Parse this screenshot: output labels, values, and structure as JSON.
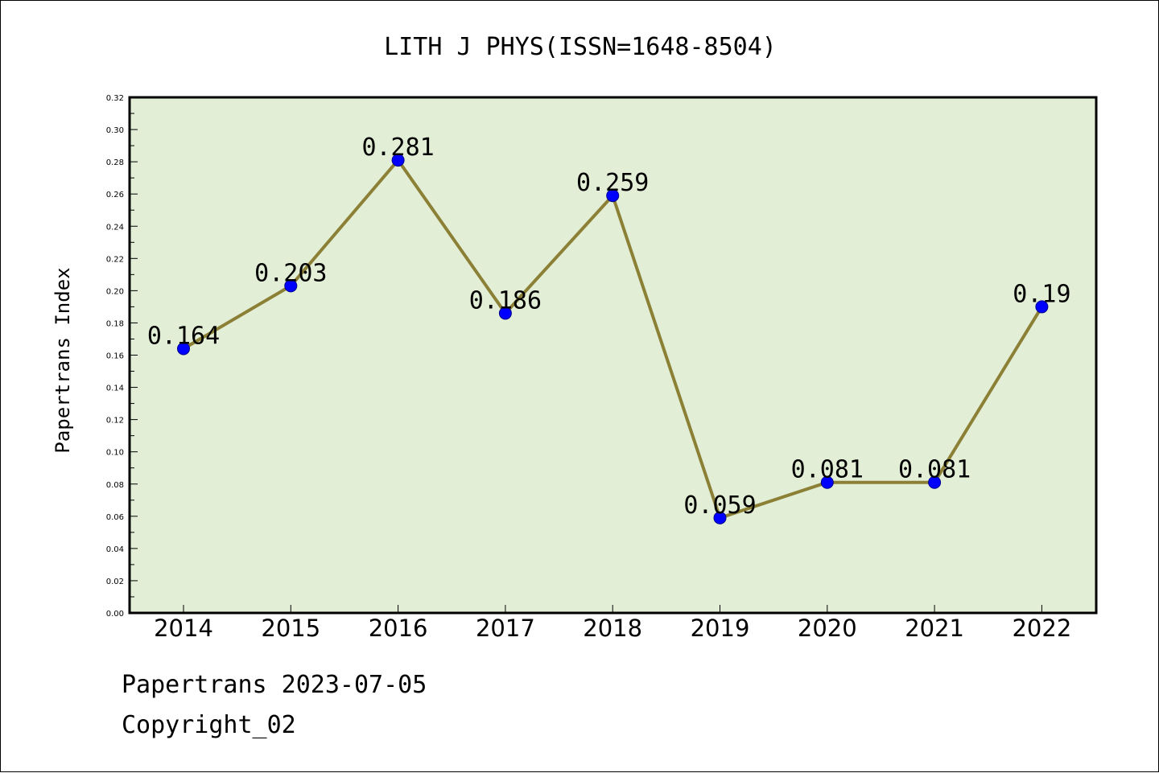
{
  "chart_data": {
    "type": "line",
    "title": "LITH J PHYS(ISSN=1648-8504)",
    "ylabel": "Papertrans Index",
    "xlabel": "",
    "categories": [
      "2014",
      "2015",
      "2016",
      "2017",
      "2018",
      "2019",
      "2020",
      "2021",
      "2022"
    ],
    "series": [
      {
        "values": [
          0.164,
          0.203,
          0.281,
          0.186,
          0.259,
          0.059,
          0.081,
          0.081,
          0.19
        ],
        "labels": [
          "0.164",
          "0.203",
          "0.281",
          "0.186",
          "0.259",
          "0.059",
          "0.081",
          "0.081",
          "0.19"
        ]
      }
    ],
    "ylim": [
      0,
      0.32
    ],
    "yticks": [
      "0.00",
      "0.02",
      "0.04",
      "0.06",
      "0.08",
      "0.10",
      "0.12",
      "0.14",
      "0.16",
      "0.18",
      "0.20",
      "0.22",
      "0.24",
      "0.26",
      "0.28",
      "0.30",
      "0.32"
    ],
    "grid": false,
    "colors": {
      "plot_background": "#e2efd6",
      "line": "#8b8035",
      "marker": "#0000ff"
    }
  },
  "footer": {
    "line1": "Papertrans 2023-07-05",
    "line2": "Copyright_02"
  }
}
